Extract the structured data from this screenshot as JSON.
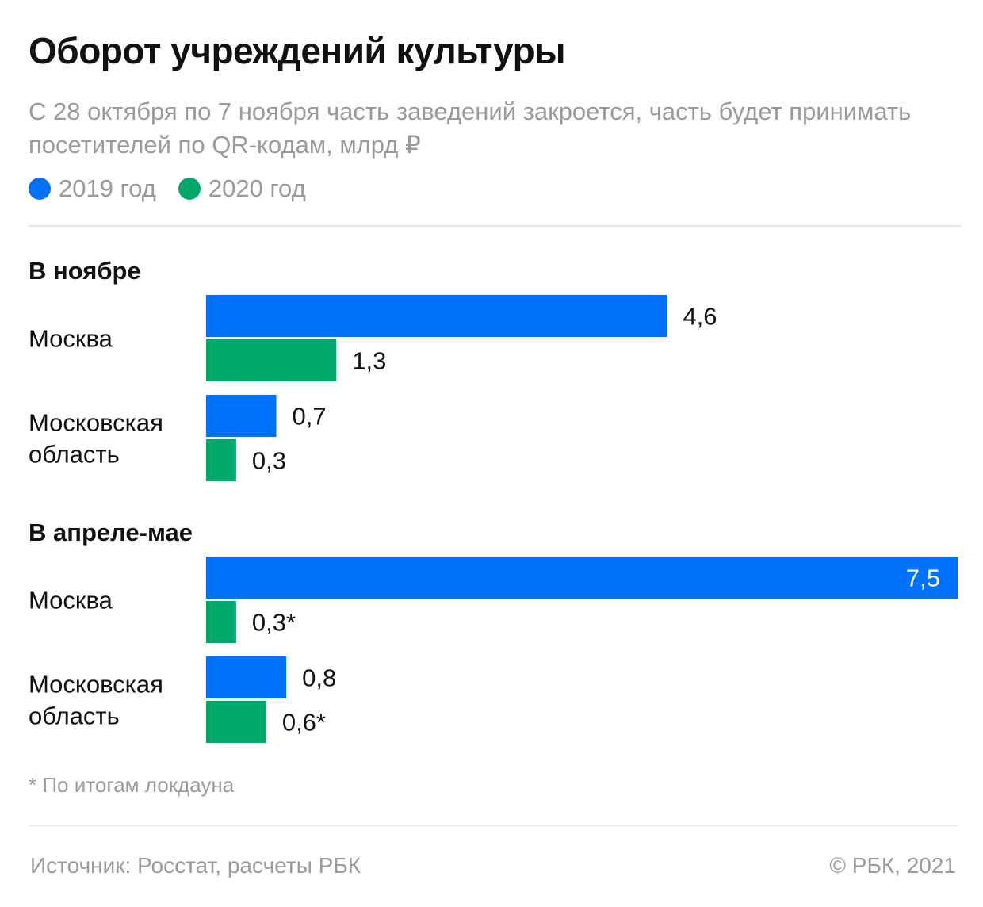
{
  "header": {
    "title": "Оборот учреждений культуры",
    "subtitle": "С 28 октября по 7 ноября часть заведений закроется, часть будет принимать посетителей по QR-кодам, млрд ₽"
  },
  "footer": {
    "footnote": "* По итогам локдауна",
    "source": "Источник: Росстат, расчеты РБК",
    "copyright": "©  РБК, 2021"
  },
  "colors": {
    "series_2019": "#0072fa",
    "series_2020": "#00a86b",
    "muted_text": "#9a9a9a"
  },
  "chart_data": {
    "type": "bar",
    "orientation": "horizontal",
    "xlim": [
      0,
      7.5
    ],
    "grid": false,
    "legend_position": "top-left",
    "series": [
      {
        "name": "2019 год",
        "color": "#0072fa"
      },
      {
        "name": "2020 год",
        "color": "#00a86b"
      }
    ],
    "groups": [
      {
        "title": "В ноябре",
        "rows": [
          {
            "category": "Москва",
            "values": [
              4.6,
              1.3
            ],
            "labels": [
              "4,6",
              "1,3"
            ]
          },
          {
            "category": "Московская область",
            "values": [
              0.7,
              0.3
            ],
            "labels": [
              "0,7",
              "0,3"
            ]
          }
        ]
      },
      {
        "title": "В апреле-мае",
        "rows": [
          {
            "category": "Москва",
            "values": [
              7.5,
              0.3
            ],
            "labels": [
              "7,5",
              "0,3*"
            ]
          },
          {
            "category": "Московская область",
            "values": [
              0.8,
              0.6
            ],
            "labels": [
              "0,8",
              "0,6*"
            ]
          }
        ]
      }
    ]
  }
}
